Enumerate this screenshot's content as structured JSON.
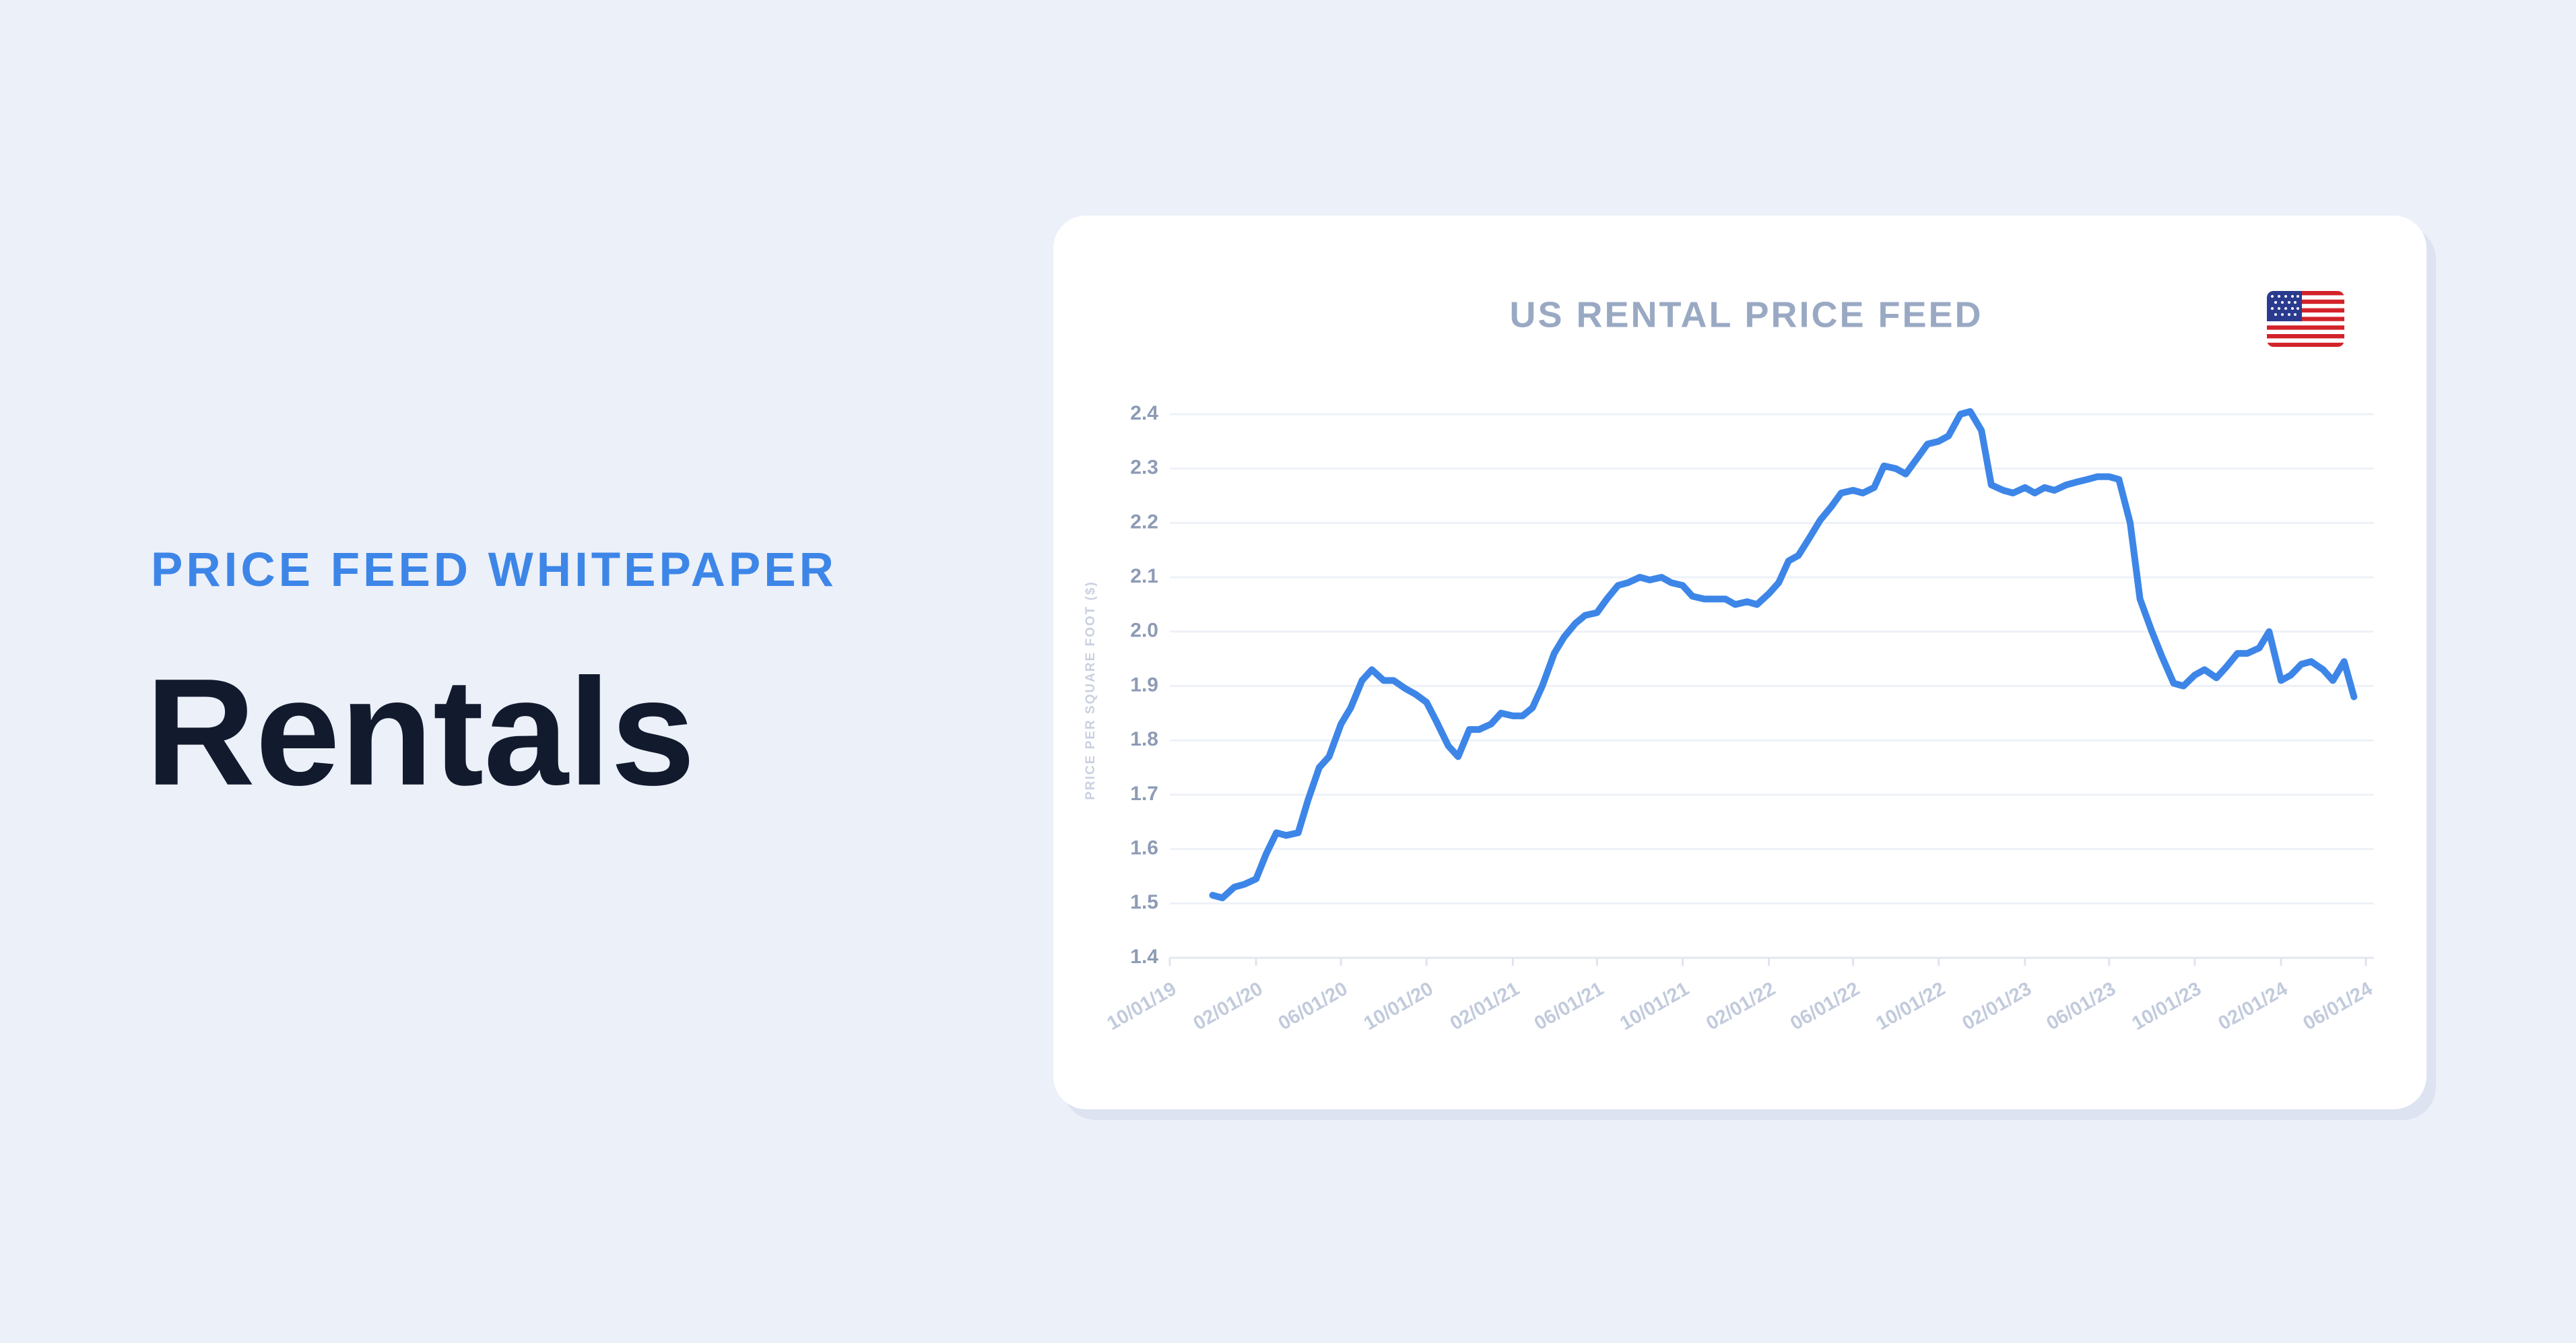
{
  "header": {
    "eyebrow": "PRICE FEED WHITEPAPER",
    "title": "Rentals"
  },
  "chart_data": {
    "type": "line",
    "title": "US RENTAL PRICE FEED",
    "ylabel": "PRICE PER SQUARE FOOT ($)",
    "color": "#3d86e8",
    "grid": true,
    "x": [
      "2019-12-01",
      "2019-12-15",
      "2020-01-01",
      "2020-01-15",
      "2020-02-01",
      "2020-02-15",
      "2020-03-01",
      "2020-03-15",
      "2020-04-01",
      "2020-04-15",
      "2020-05-01",
      "2020-05-15",
      "2020-06-01",
      "2020-06-15",
      "2020-07-01",
      "2020-07-15",
      "2020-08-01",
      "2020-08-15",
      "2020-09-01",
      "2020-09-15",
      "2020-10-01",
      "2020-10-15",
      "2020-11-01",
      "2020-11-15",
      "2020-12-01",
      "2020-12-15",
      "2021-01-01",
      "2021-01-15",
      "2021-02-01",
      "2021-02-15",
      "2021-03-01",
      "2021-03-15",
      "2021-04-01",
      "2021-04-15",
      "2021-05-01",
      "2021-05-15",
      "2021-06-01",
      "2021-06-15",
      "2021-07-01",
      "2021-07-15",
      "2021-08-01",
      "2021-08-15",
      "2021-09-01",
      "2021-09-15",
      "2021-10-01",
      "2021-10-15",
      "2021-11-01",
      "2021-11-15",
      "2021-12-01",
      "2021-12-15",
      "2022-01-01",
      "2022-01-15",
      "2022-02-01",
      "2022-02-15",
      "2022-03-01",
      "2022-03-15",
      "2022-04-01",
      "2022-04-15",
      "2022-05-01",
      "2022-05-15",
      "2022-06-01",
      "2022-06-15",
      "2022-07-01",
      "2022-07-15",
      "2022-08-01",
      "2022-08-15",
      "2022-09-01",
      "2022-09-15",
      "2022-10-01",
      "2022-10-15",
      "2022-11-01",
      "2022-11-15",
      "2022-12-01",
      "2022-12-15",
      "2023-01-01",
      "2023-01-15",
      "2023-02-01",
      "2023-02-15",
      "2023-03-01",
      "2023-03-15",
      "2023-04-01",
      "2023-04-15",
      "2023-05-01",
      "2023-05-15",
      "2023-06-01",
      "2023-06-15",
      "2023-07-01",
      "2023-07-15",
      "2023-08-01",
      "2023-08-15",
      "2023-09-01",
      "2023-09-15",
      "2023-10-01",
      "2023-10-15",
      "2023-11-01",
      "2023-11-15",
      "2023-12-01",
      "2023-12-15",
      "2024-01-01",
      "2024-01-15",
      "2024-02-01",
      "2024-02-15",
      "2024-03-01",
      "2024-03-15",
      "2024-04-01",
      "2024-04-15",
      "2024-05-01",
      "2024-05-15"
    ],
    "values": [
      1.515,
      1.51,
      1.53,
      1.535,
      1.545,
      1.59,
      1.63,
      1.625,
      1.63,
      1.69,
      1.75,
      1.77,
      1.83,
      1.86,
      1.91,
      1.93,
      1.91,
      1.91,
      1.895,
      1.885,
      1.87,
      1.835,
      1.79,
      1.77,
      1.82,
      1.82,
      1.83,
      1.85,
      1.845,
      1.845,
      1.86,
      1.9,
      1.96,
      1.99,
      2.015,
      2.03,
      2.035,
      2.06,
      2.085,
      2.09,
      2.1,
      2.095,
      2.1,
      2.09,
      2.085,
      2.065,
      2.06,
      2.06,
      2.06,
      2.05,
      2.055,
      2.05,
      2.07,
      2.09,
      2.13,
      2.14,
      2.175,
      2.205,
      2.23,
      2.255,
      2.26,
      2.255,
      2.265,
      2.305,
      2.3,
      2.29,
      2.32,
      2.345,
      2.35,
      2.36,
      2.4,
      2.405,
      2.37,
      2.27,
      2.26,
      2.255,
      2.265,
      2.255,
      2.265,
      2.26,
      2.27,
      2.275,
      2.28,
      2.285,
      2.285,
      2.28,
      2.2,
      2.06,
      2.0,
      1.955,
      1.905,
      1.9,
      1.92,
      1.93,
      1.915,
      1.935,
      1.96,
      1.96,
      1.97,
      2.0,
      1.91,
      1.92,
      1.94,
      1.945,
      1.93,
      1.91,
      1.945,
      1.88
    ],
    "xlim": [
      "2019-10-01",
      "2024-06-01"
    ],
    "xticks": [
      {
        "value": "2019-10-01",
        "label": "10/01/19"
      },
      {
        "value": "2020-02-01",
        "label": "02/01/20"
      },
      {
        "value": "2020-06-01",
        "label": "06/01/20"
      },
      {
        "value": "2020-10-01",
        "label": "10/01/20"
      },
      {
        "value": "2021-02-01",
        "label": "02/01/21"
      },
      {
        "value": "2021-06-01",
        "label": "06/01/21"
      },
      {
        "value": "2021-10-01",
        "label": "10/01/21"
      },
      {
        "value": "2022-02-01",
        "label": "02/01/22"
      },
      {
        "value": "2022-06-01",
        "label": "06/01/22"
      },
      {
        "value": "2022-10-01",
        "label": "10/01/22"
      },
      {
        "value": "2023-02-01",
        "label": "02/01/23"
      },
      {
        "value": "2023-06-01",
        "label": "06/01/23"
      },
      {
        "value": "2023-10-01",
        "label": "10/01/23"
      },
      {
        "value": "2024-02-01",
        "label": "02/01/24"
      },
      {
        "value": "2024-06-01",
        "label": "06/01/24"
      }
    ],
    "ylim": [
      1.4,
      2.4
    ],
    "yticks": [
      1.4,
      1.5,
      1.6,
      1.7,
      1.8,
      1.9,
      {
        "value": 2,
        "label": "2.0"
      },
      2.1,
      2.2,
      2.3,
      2.4
    ]
  }
}
